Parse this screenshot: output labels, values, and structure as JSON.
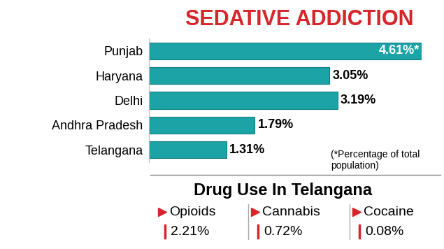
{
  "chart_data": [
    {
      "type": "bar",
      "title": "SEDATIVE ADDICTION",
      "orientation": "horizontal",
      "categories": [
        "Punjab",
        "Haryana",
        "Delhi",
        "Andhra Pradesh",
        "Telangana"
      ],
      "values": [
        4.61,
        3.05,
        3.19,
        1.79,
        1.31
      ],
      "value_labels": [
        "4.61%*",
        "3.05%",
        "3.19%",
        "1.79%",
        "1.31%"
      ],
      "data_labels": true,
      "color": "#1ba3a6",
      "xlim": [
        0,
        4.61
      ],
      "tick_labels": "y",
      "annotations": [
        "(*Percentage of total population)"
      ]
    },
    {
      "type": "text",
      "title": "Drug Use In Telangana",
      "color": "#d7262b",
      "items": [
        {
          "label": "Opioids",
          "text": "2.21%"
        },
        {
          "label": "Cannabis",
          "text": "0.72%"
        },
        {
          "label": "Cocaine",
          "text": "0.08%"
        }
      ]
    }
  ]
}
